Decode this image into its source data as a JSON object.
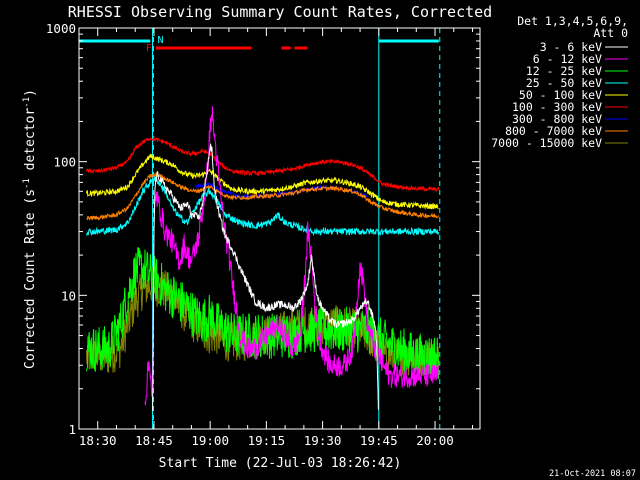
{
  "chart_data": {
    "type": "line",
    "title": "RHESSI Observing Summary Count Rates, Corrected",
    "xlabel": "Start Time (22-Jul-03 18:26:42)",
    "ylabel_main": "Corrected Count Rate (s",
    "ylabel_sup1": "-1",
    "ylabel_mid": " detector",
    "ylabel_sup2": "-1",
    "ylabel_end": ")",
    "yscale": "log",
    "ylim": [
      1,
      1000
    ],
    "xlim_min": [
      25,
      132
    ],
    "x_unit": "minutes after 18:00 UT",
    "x_ticks": [
      {
        "v": 30,
        "label": "18:30"
      },
      {
        "v": 45,
        "label": "18:45"
      },
      {
        "v": 60,
        "label": "19:00"
      },
      {
        "v": 75,
        "label": "19:15"
      },
      {
        "v": 90,
        "label": "19:30"
      },
      {
        "v": 105,
        "label": "19:45"
      },
      {
        "v": 120,
        "label": "20:00"
      }
    ],
    "y_ticks": [
      {
        "v": 1,
        "label": "1"
      },
      {
        "v": 10,
        "label": "10"
      },
      {
        "v": 100,
        "label": "100"
      },
      {
        "v": 1000,
        "label": "1000"
      }
    ],
    "legend_header": [
      "Det 1,3,4,5,6,9,",
      "Att 0"
    ],
    "series": [
      {
        "name": "3 - 6 keV",
        "color": "#ffffff",
        "x": [
          27,
          40,
          44,
          44.6,
          45,
          45.3,
          46,
          48,
          50,
          52,
          54,
          55,
          57,
          58,
          59,
          60,
          60.5,
          61,
          62,
          63,
          64,
          66,
          68,
          70,
          72,
          75,
          78,
          80,
          82,
          84,
          86,
          87,
          88,
          89,
          90,
          92,
          94,
          96,
          98,
          100,
          102,
          103,
          104,
          104.5,
          105
        ],
        "y": [
          null,
          null,
          null,
          1,
          30,
          70,
          80,
          65,
          55,
          45,
          48,
          40,
          38,
          50,
          80,
          130,
          120,
          70,
          45,
          35,
          28,
          22,
          16,
          12,
          9,
          8,
          8.5,
          8.5,
          8,
          9,
          12,
          20,
          12,
          9,
          8,
          6.5,
          6,
          6.2,
          6.5,
          8,
          9,
          7.5,
          6,
          4,
          1
        ]
      },
      {
        "name": "6 - 12 keV",
        "color": "#ff00ff",
        "x": [
          27,
          42,
          42.5,
          43,
          43.5,
          44,
          44.6,
          45,
          45.5,
          46,
          47,
          48,
          50,
          51,
          52,
          53,
          54,
          55,
          56,
          57,
          58,
          59,
          60,
          60.5,
          61,
          62,
          63,
          64,
          65,
          66,
          67,
          68,
          70,
          72,
          75,
          78,
          80,
          82,
          84,
          85,
          86,
          87,
          88,
          89,
          90,
          92,
          94,
          96,
          98,
          99,
          100,
          101,
          102,
          104,
          106,
          108,
          110,
          112,
          115,
          118,
          121
        ],
        "y": [
          null,
          null,
          1.5,
          2,
          3,
          3,
          1.5,
          35,
          60,
          50,
          40,
          30,
          25,
          20,
          18,
          24,
          20,
          18,
          22,
          28,
          45,
          70,
          180,
          230,
          170,
          90,
          50,
          30,
          20,
          12,
          8,
          5,
          4,
          4,
          5,
          6,
          5,
          4,
          5,
          10,
          30,
          20,
          8,
          5,
          4,
          3,
          3,
          3,
          4,
          8,
          17,
          12,
          6,
          4,
          3,
          2.5,
          2.5,
          2.5,
          2.5,
          2.5,
          2.5
        ]
      },
      {
        "name": "12 - 25 keV",
        "color": "#00ff00",
        "x": [
          27,
          33,
          36,
          38,
          40,
          42,
          44,
          46,
          48,
          50,
          52,
          54,
          56,
          58,
          60,
          62,
          64,
          66,
          68,
          70,
          72,
          75,
          78,
          80,
          82,
          84,
          86,
          88,
          90,
          92,
          94,
          96,
          98,
          100,
          102,
          104,
          106,
          110,
          115,
          121
        ],
        "y": [
          4,
          4,
          6,
          10,
          15,
          16,
          14,
          13,
          11,
          10,
          9,
          8,
          7,
          6.5,
          7,
          6,
          5.5,
          5,
          5,
          5,
          5,
          5,
          5,
          5,
          5,
          5.5,
          5.5,
          5.5,
          5.5,
          5.5,
          5.5,
          5.5,
          5.5,
          5.5,
          5.5,
          5,
          4.5,
          4,
          3.5,
          3.5
        ]
      },
      {
        "name": "25 - 50 keV",
        "color": "#00ffff",
        "x": [
          27,
          30,
          35,
          38,
          40,
          42,
          44,
          45,
          46,
          48,
          50,
          52,
          54,
          55,
          56,
          58,
          60,
          62,
          64,
          68,
          72,
          76,
          78,
          80,
          84,
          88,
          92,
          96,
          100,
          102,
          104,
          106,
          110,
          115,
          121
        ],
        "y": [
          30,
          30,
          31,
          35,
          45,
          60,
          70,
          75,
          72,
          60,
          45,
          38,
          35,
          40,
          45,
          55,
          60,
          50,
          40,
          35,
          33,
          35,
          40,
          35,
          32,
          30,
          30,
          30,
          30,
          30,
          30,
          30,
          30,
          30,
          30
        ]
      },
      {
        "name": "50 - 100 keV",
        "color": "#ffff00",
        "x": [
          27,
          30,
          35,
          38,
          40,
          42,
          44,
          46,
          48,
          50,
          52,
          54,
          56,
          58,
          60,
          62,
          64,
          66,
          70,
          74,
          78,
          82,
          86,
          90,
          94,
          98,
          100,
          102,
          104,
          106,
          110,
          115,
          121
        ],
        "y": [
          58,
          58,
          60,
          65,
          80,
          95,
          110,
          105,
          100,
          95,
          85,
          80,
          78,
          80,
          85,
          75,
          68,
          62,
          60,
          60,
          62,
          65,
          70,
          72,
          72,
          68,
          65,
          60,
          55,
          50,
          48,
          47,
          46
        ]
      },
      {
        "name": "100 - 300 keV",
        "color": "#ff0000",
        "x": [
          27,
          30,
          35,
          38,
          40,
          42,
          44,
          46,
          48,
          50,
          52,
          54,
          56,
          58,
          60,
          62,
          64,
          66,
          70,
          74,
          78,
          82,
          86,
          90,
          94,
          98,
          100,
          102,
          104,
          106,
          110,
          115,
          121
        ],
        "y": [
          85,
          85,
          90,
          100,
          125,
          140,
          150,
          145,
          140,
          130,
          120,
          115,
          115,
          120,
          115,
          100,
          90,
          85,
          82,
          82,
          85,
          88,
          95,
          100,
          100,
          95,
          90,
          82,
          75,
          68,
          65,
          63,
          62
        ]
      },
      {
        "name": "300 - 800 keV",
        "color": "#0000ff",
        "x": [
          56,
          60,
          64,
          68,
          72,
          76,
          80,
          84,
          88,
          92,
          96,
          100,
          102
        ],
        "y": [
          65,
          68,
          60,
          55,
          55,
          56,
          58,
          60,
          64,
          64,
          62,
          58,
          55
        ]
      },
      {
        "name": "800 - 7000 keV",
        "color": "#ff8000",
        "x": [
          27,
          30,
          35,
          38,
          40,
          42,
          44,
          46,
          48,
          50,
          52,
          54,
          56,
          58,
          60,
          62,
          64,
          66,
          70,
          74,
          78,
          82,
          86,
          90,
          94,
          98,
          100,
          102,
          104,
          106,
          110,
          115,
          121
        ],
        "y": [
          38,
          38,
          40,
          45,
          55,
          68,
          78,
          80,
          75,
          70,
          65,
          62,
          60,
          62,
          65,
          60,
          56,
          54,
          54,
          55,
          56,
          58,
          62,
          63,
          63,
          60,
          57,
          52,
          48,
          45,
          42,
          40,
          39
        ]
      },
      {
        "name": "7000 - 15000 keV",
        "color": "#808000",
        "x": [
          27,
          33,
          36,
          38,
          40,
          42,
          44,
          46,
          48,
          50,
          52,
          54,
          56,
          58,
          60,
          62,
          64,
          66,
          70,
          75,
          80,
          85,
          90,
          95,
          100,
          104,
          106,
          110,
          115,
          121
        ],
        "y": [
          3.5,
          3.5,
          4,
          6,
          9,
          11,
          12,
          11.5,
          11,
          10,
          8,
          7,
          6,
          5.5,
          5,
          5,
          4.5,
          4.5,
          4.5,
          5,
          5.5,
          6,
          6,
          6,
          5.5,
          4.5,
          3.5,
          3.5,
          3.5,
          3.5
        ]
      }
    ],
    "annotations": {
      "attenuator_bars": [
        {
          "x0": 25,
          "x1": 44
        },
        {
          "x0": 105,
          "x1": 121
        }
      ],
      "night_lines": [
        44.6,
        105
      ],
      "dashed_lines": [
        44.6,
        121
      ],
      "flare_bars": [
        {
          "x0": 45.5,
          "x1": 71
        },
        {
          "x0": 79,
          "x1": 81.5
        },
        {
          "x0": 82.5,
          "x1": 86
        }
      ],
      "f_label": "F",
      "n_label": "N"
    }
  },
  "footer": {
    "date": "21-Oct-2021 08:07"
  }
}
